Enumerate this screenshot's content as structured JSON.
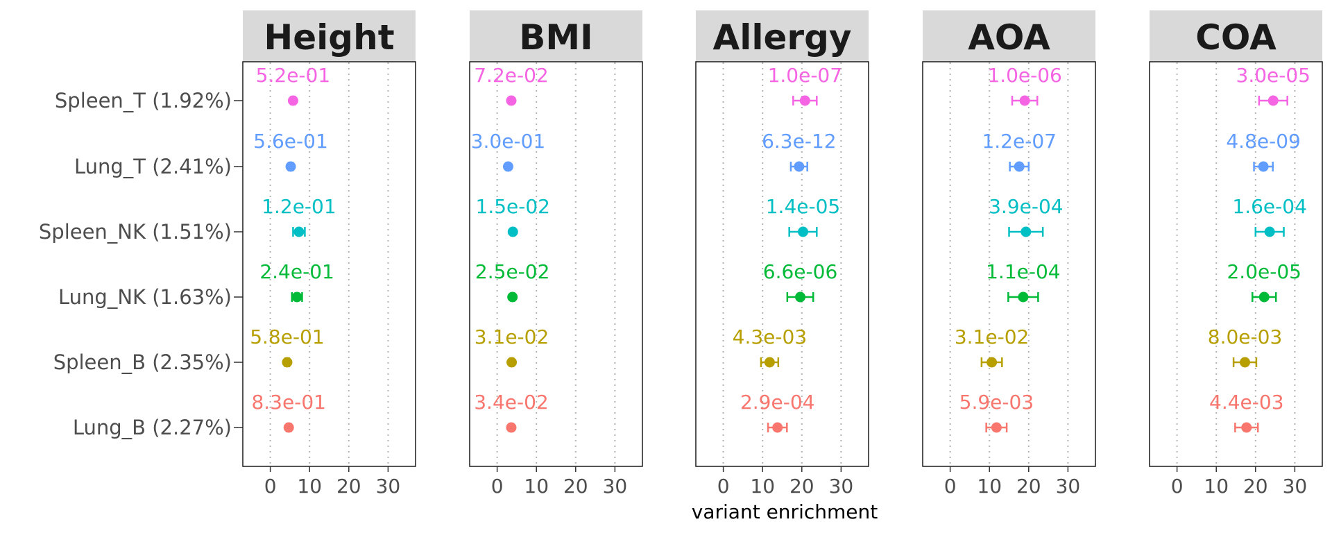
{
  "chart_data": {
    "type": "scatter",
    "xlabel": "variant enrichment",
    "xlim": [
      -7,
      37
    ],
    "x_ticks": [
      0,
      10,
      20,
      30
    ],
    "grid": "vertical dotted at x ticks",
    "legend": "none",
    "rows": [
      {
        "label": "Spleen_T (1.92%)",
        "color": "#F564E3"
      },
      {
        "label": "Lung_T (2.41%)",
        "color": "#619CFF"
      },
      {
        "label": "Spleen_NK (1.51%)",
        "color": "#00BFC4"
      },
      {
        "label": "Lung_NK (1.63%)",
        "color": "#00BA38"
      },
      {
        "label": "Spleen_B (2.35%)",
        "color": "#B79F00"
      },
      {
        "label": "Lung_B (2.27%)",
        "color": "#F8766D"
      }
    ],
    "panels": [
      {
        "title": "Height",
        "points": [
          {
            "x": 5.8,
            "lo": 5.3,
            "hi": 6.3,
            "p": "5.2e-01"
          },
          {
            "x": 5.2,
            "lo": 4.7,
            "hi": 5.7,
            "p": "5.6e-01"
          },
          {
            "x": 7.3,
            "lo": 5.8,
            "hi": 8.8,
            "p": "1.2e-01"
          },
          {
            "x": 6.8,
            "lo": 5.5,
            "hi": 8.1,
            "p": "2.4e-01"
          },
          {
            "x": 4.3,
            "lo": 3.8,
            "hi": 4.8,
            "p": "5.8e-01"
          },
          {
            "x": 4.7,
            "lo": 4.2,
            "hi": 5.2,
            "p": "8.3e-01"
          }
        ]
      },
      {
        "title": "BMI",
        "points": [
          {
            "x": 3.6,
            "lo": 3.2,
            "hi": 4.0,
            "p": "7.2e-02"
          },
          {
            "x": 2.8,
            "lo": 2.4,
            "hi": 3.2,
            "p": "3.0e-01"
          },
          {
            "x": 4.0,
            "lo": 3.6,
            "hi": 4.4,
            "p": "1.5e-02"
          },
          {
            "x": 3.9,
            "lo": 3.5,
            "hi": 4.3,
            "p": "2.5e-02"
          },
          {
            "x": 3.7,
            "lo": 3.3,
            "hi": 4.1,
            "p": "3.1e-02"
          },
          {
            "x": 3.6,
            "lo": 3.2,
            "hi": 4.0,
            "p": "3.4e-02"
          }
        ]
      },
      {
        "title": "Allergy",
        "points": [
          {
            "x": 20.8,
            "lo": 17.8,
            "hi": 23.8,
            "p": "1.0e-07"
          },
          {
            "x": 19.3,
            "lo": 17.2,
            "hi": 21.4,
            "p": "6.3e-12"
          },
          {
            "x": 20.3,
            "lo": 16.8,
            "hi": 23.8,
            "p": "1.4e-05"
          },
          {
            "x": 19.6,
            "lo": 16.3,
            "hi": 22.9,
            "p": "6.6e-06"
          },
          {
            "x": 11.8,
            "lo": 9.6,
            "hi": 14.0,
            "p": "4.3e-03"
          },
          {
            "x": 13.8,
            "lo": 11.4,
            "hi": 16.2,
            "p": "2.9e-04"
          }
        ]
      },
      {
        "title": "AOA",
        "points": [
          {
            "x": 19.0,
            "lo": 15.8,
            "hi": 22.2,
            "p": "1.0e-06"
          },
          {
            "x": 17.6,
            "lo": 15.2,
            "hi": 20.0,
            "p": "1.2e-07"
          },
          {
            "x": 19.3,
            "lo": 15.0,
            "hi": 23.6,
            "p": "3.9e-04"
          },
          {
            "x": 18.6,
            "lo": 14.8,
            "hi": 22.4,
            "p": "1.1e-04"
          },
          {
            "x": 10.6,
            "lo": 8.0,
            "hi": 13.2,
            "p": "3.1e-02"
          },
          {
            "x": 11.8,
            "lo": 9.2,
            "hi": 14.4,
            "p": "5.9e-03"
          }
        ]
      },
      {
        "title": "COA",
        "points": [
          {
            "x": 24.5,
            "lo": 20.9,
            "hi": 28.1,
            "p": "3.0e-05"
          },
          {
            "x": 22.0,
            "lo": 19.6,
            "hi": 24.4,
            "p": "4.8e-09"
          },
          {
            "x": 23.6,
            "lo": 20.0,
            "hi": 27.2,
            "p": "1.6e-04"
          },
          {
            "x": 22.2,
            "lo": 19.2,
            "hi": 25.2,
            "p": "2.0e-05"
          },
          {
            "x": 17.3,
            "lo": 14.4,
            "hi": 20.2,
            "p": "8.0e-03"
          },
          {
            "x": 17.7,
            "lo": 14.8,
            "hi": 20.6,
            "p": "4.4e-03"
          }
        ]
      }
    ]
  }
}
